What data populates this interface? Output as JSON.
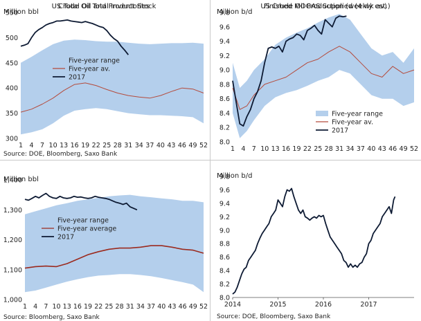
{
  "colors": {
    "band": "#b4cfec",
    "avg": "#b44b3c",
    "avg_dark": "#9b2a1e",
    "line": "#0d1a33"
  },
  "chart_data": [
    {
      "type": "area",
      "title": "Crude Oil Total Inventories",
      "ylabel": "Million bbl",
      "source": "Source: DOE, Bloomberg, Saxo Bank",
      "ylim": [
        300,
        550
      ],
      "yticks": [
        300,
        350,
        400,
        450,
        500,
        550
      ],
      "xlim": [
        1,
        52
      ],
      "xticks": [
        1,
        4,
        7,
        10,
        13,
        16,
        19,
        22,
        25,
        28,
        31,
        34,
        37,
        40,
        43,
        46,
        49,
        52
      ],
      "legend_position": "center",
      "series": [
        {
          "name": "Five-year range",
          "kind": "band",
          "x": [
            1,
            4,
            7,
            10,
            13,
            16,
            19,
            22,
            25,
            28,
            31,
            34,
            37,
            40,
            43,
            46,
            49,
            52
          ],
          "low": [
            308,
            312,
            318,
            330,
            345,
            355,
            358,
            360,
            358,
            354,
            350,
            348,
            346,
            346,
            345,
            344,
            342,
            330
          ],
          "high": [
            450,
            462,
            475,
            487,
            494,
            496,
            495,
            493,
            492,
            492,
            490,
            488,
            487,
            488,
            489,
            489,
            490,
            488
          ]
        },
        {
          "name": "Five-year av.",
          "kind": "line",
          "x": [
            1,
            4,
            7,
            10,
            13,
            16,
            19,
            22,
            25,
            28,
            31,
            34,
            37,
            40,
            43,
            46,
            49,
            52
          ],
          "values": [
            352,
            358,
            368,
            380,
            395,
            407,
            410,
            405,
            397,
            390,
            385,
            382,
            380,
            385,
            393,
            400,
            398,
            390
          ]
        },
        {
          "name": "2017",
          "kind": "line",
          "x": [
            1,
            2,
            3,
            4,
            5,
            6,
            7,
            8,
            9,
            10,
            11,
            12,
            13,
            14,
            15,
            16,
            17,
            18,
            19,
            20,
            21,
            22,
            23,
            24,
            25,
            26,
            27,
            28,
            29,
            30,
            31
          ],
          "values": [
            483,
            485,
            488,
            500,
            510,
            516,
            520,
            525,
            528,
            530,
            533,
            533,
            534,
            535,
            533,
            532,
            531,
            530,
            532,
            530,
            528,
            525,
            522,
            520,
            514,
            505,
            498,
            493,
            483,
            475,
            466
          ]
        }
      ]
    },
    {
      "type": "area",
      "title": "Finished MOGAS Supplied (4 wk av)",
      "ylabel": "Million b/d",
      "ylim": [
        8.0,
        9.8
      ],
      "yticks": [
        8.0,
        8.2,
        8.4,
        8.6,
        8.8,
        9.0,
        9.2,
        9.4,
        9.6,
        9.8
      ],
      "xlim": [
        1,
        52
      ],
      "xticks": [
        1,
        4,
        7,
        10,
        13,
        16,
        19,
        22,
        25,
        28,
        31,
        34,
        37,
        40,
        43,
        46,
        49,
        52
      ],
      "legend_position": "bottom-right",
      "series": [
        {
          "name": "Five-year range",
          "kind": "band",
          "x": [
            1,
            3,
            5,
            7,
            10,
            13,
            16,
            19,
            22,
            25,
            28,
            31,
            34,
            37,
            40,
            43,
            46,
            49,
            52
          ],
          "low": [
            8.4,
            8.05,
            8.15,
            8.3,
            8.5,
            8.62,
            8.68,
            8.72,
            8.78,
            8.85,
            8.9,
            9.0,
            8.95,
            8.8,
            8.65,
            8.6,
            8.6,
            8.5,
            8.55
          ],
          "high": [
            9.1,
            8.75,
            8.85,
            9.0,
            9.15,
            9.35,
            9.45,
            9.52,
            9.58,
            9.66,
            9.73,
            9.78,
            9.7,
            9.5,
            9.3,
            9.2,
            9.25,
            9.1,
            9.3
          ]
        },
        {
          "name": "Five-year av.",
          "kind": "line",
          "x": [
            1,
            3,
            5,
            7,
            10,
            13,
            16,
            19,
            22,
            25,
            28,
            31,
            34,
            37,
            40,
            43,
            46,
            49,
            52
          ],
          "values": [
            8.75,
            8.45,
            8.5,
            8.65,
            8.8,
            8.85,
            8.9,
            9.0,
            9.1,
            9.15,
            9.25,
            9.33,
            9.25,
            9.1,
            8.95,
            8.9,
            9.05,
            8.95,
            9.0
          ]
        },
        {
          "name": "2017",
          "kind": "line",
          "x": [
            1,
            2,
            3,
            4,
            5,
            6,
            7,
            8,
            9,
            10,
            11,
            12,
            13,
            14,
            15,
            16,
            17,
            18,
            19,
            20,
            21,
            22,
            23,
            24,
            25,
            26,
            27,
            28,
            29,
            30,
            31,
            32,
            33
          ],
          "values": [
            8.85,
            8.55,
            8.25,
            8.22,
            8.35,
            8.45,
            8.6,
            8.7,
            8.85,
            9.1,
            9.3,
            9.32,
            9.3,
            9.33,
            9.25,
            9.4,
            9.43,
            9.45,
            9.5,
            9.48,
            9.42,
            9.55,
            9.58,
            9.62,
            9.55,
            9.5,
            9.7,
            9.65,
            9.6,
            9.72,
            9.75,
            9.74,
            9.75
          ]
        }
      ]
    },
    {
      "type": "area",
      "title": "US Total Oil and Product Stock",
      "ylabel": "Million bbl",
      "source": "Source: Bloomberg, Saxo Bank",
      "ylim": [
        1000,
        1400
      ],
      "yticks": [
        1000,
        1100,
        1200,
        1300,
        1400
      ],
      "ytick_labels": [
        "1,000",
        "1,100",
        "1,200",
        "1,300",
        "1,400"
      ],
      "xlim": [
        1,
        52
      ],
      "xticks": [
        1,
        4,
        7,
        10,
        13,
        16,
        19,
        22,
        25,
        28,
        31,
        34,
        37,
        40,
        43,
        46,
        49,
        52
      ],
      "legend_position": "center",
      "series": [
        {
          "name": "Five-year range",
          "kind": "band",
          "x": [
            1,
            4,
            7,
            10,
            13,
            16,
            19,
            22,
            25,
            28,
            31,
            34,
            37,
            40,
            43,
            46,
            49,
            52
          ],
          "low": [
            1025,
            1030,
            1040,
            1050,
            1060,
            1068,
            1075,
            1080,
            1082,
            1085,
            1085,
            1082,
            1078,
            1072,
            1065,
            1058,
            1050,
            1025
          ],
          "high": [
            1285,
            1295,
            1305,
            1315,
            1322,
            1330,
            1335,
            1340,
            1345,
            1348,
            1350,
            1345,
            1342,
            1338,
            1335,
            1330,
            1330,
            1325
          ]
        },
        {
          "name": "Five-year average",
          "kind": "line",
          "x": [
            1,
            4,
            7,
            10,
            13,
            16,
            19,
            22,
            25,
            28,
            31,
            34,
            37,
            40,
            43,
            46,
            49,
            52
          ],
          "values": [
            1105,
            1110,
            1112,
            1110,
            1120,
            1135,
            1150,
            1160,
            1168,
            1172,
            1172,
            1175,
            1180,
            1180,
            1175,
            1168,
            1165,
            1155
          ]
        },
        {
          "name": "2017",
          "kind": "line",
          "x": [
            1,
            2,
            3,
            4,
            5,
            6,
            7,
            8,
            9,
            10,
            11,
            12,
            13,
            14,
            15,
            16,
            17,
            18,
            19,
            20,
            21,
            22,
            23,
            24,
            25,
            26,
            27,
            28,
            29,
            30,
            31,
            32,
            33
          ],
          "values": [
            1335,
            1332,
            1338,
            1345,
            1340,
            1348,
            1355,
            1345,
            1340,
            1338,
            1345,
            1340,
            1338,
            1340,
            1345,
            1342,
            1343,
            1340,
            1338,
            1340,
            1345,
            1342,
            1340,
            1338,
            1335,
            1330,
            1325,
            1322,
            1318,
            1322,
            1310,
            1305,
            1300
          ]
        }
      ]
    },
    {
      "type": "line",
      "title": "US Crude Oil Production (weekly est.)",
      "ylabel": "Million b/d",
      "source": "Source: DOE, Bloomberg, Saxo Bank",
      "ylim": [
        8.0,
        9.8
      ],
      "yticks": [
        8.0,
        8.2,
        8.4,
        8.6,
        8.8,
        9.0,
        9.2,
        9.4,
        9.6,
        9.8
      ],
      "xlim": [
        2014.0,
        2018.0
      ],
      "xticks": [
        2014,
        2015,
        2016,
        2017
      ],
      "ytick_labels": [
        "8.0",
        "8.2",
        "8.4",
        "8.6",
        "8.8",
        "9.0",
        "9.2",
        "9.4",
        "9.6",
        "9.8"
      ],
      "series": [
        {
          "kind": "line",
          "x": [
            2014.0,
            2014.05,
            2014.1,
            2014.15,
            2014.2,
            2014.25,
            2014.3,
            2014.35,
            2014.4,
            2014.45,
            2014.5,
            2014.55,
            2014.6,
            2014.65,
            2014.7,
            2014.75,
            2014.8,
            2014.85,
            2014.9,
            2014.95,
            2015.0,
            2015.05,
            2015.1,
            2015.15,
            2015.2,
            2015.25,
            2015.3,
            2015.35,
            2015.4,
            2015.45,
            2015.5,
            2015.55,
            2015.6,
            2015.65,
            2015.7,
            2015.75,
            2015.8,
            2015.85,
            2015.9,
            2015.95,
            2016.0,
            2016.05,
            2016.1,
            2016.15,
            2016.2,
            2016.25,
            2016.3,
            2016.35,
            2016.4,
            2016.45,
            2016.5,
            2016.55,
            2016.6,
            2016.65,
            2016.7,
            2016.75,
            2016.8,
            2016.85,
            2016.9,
            2016.95,
            2017.0,
            2017.05,
            2017.1,
            2017.15,
            2017.2,
            2017.25,
            2017.3,
            2017.35,
            2017.4,
            2017.45,
            2017.5,
            2017.55,
            2017.58
          ],
          "values": [
            8.05,
            8.08,
            8.15,
            8.25,
            8.35,
            8.42,
            8.45,
            8.55,
            8.6,
            8.65,
            8.7,
            8.8,
            8.88,
            8.95,
            9.0,
            9.05,
            9.1,
            9.2,
            9.25,
            9.3,
            9.45,
            9.4,
            9.35,
            9.5,
            9.6,
            9.58,
            9.62,
            9.5,
            9.4,
            9.3,
            9.25,
            9.3,
            9.2,
            9.18,
            9.15,
            9.18,
            9.2,
            9.18,
            9.22,
            9.2,
            9.22,
            9.1,
            9.0,
            8.9,
            8.85,
            8.8,
            8.75,
            8.7,
            8.65,
            8.55,
            8.52,
            8.45,
            8.5,
            8.45,
            8.48,
            8.45,
            8.5,
            8.52,
            8.6,
            8.65,
            8.8,
            8.85,
            8.95,
            9.0,
            9.05,
            9.1,
            9.2,
            9.25,
            9.3,
            9.35,
            9.25,
            9.45,
            9.5
          ]
        }
      ]
    }
  ]
}
